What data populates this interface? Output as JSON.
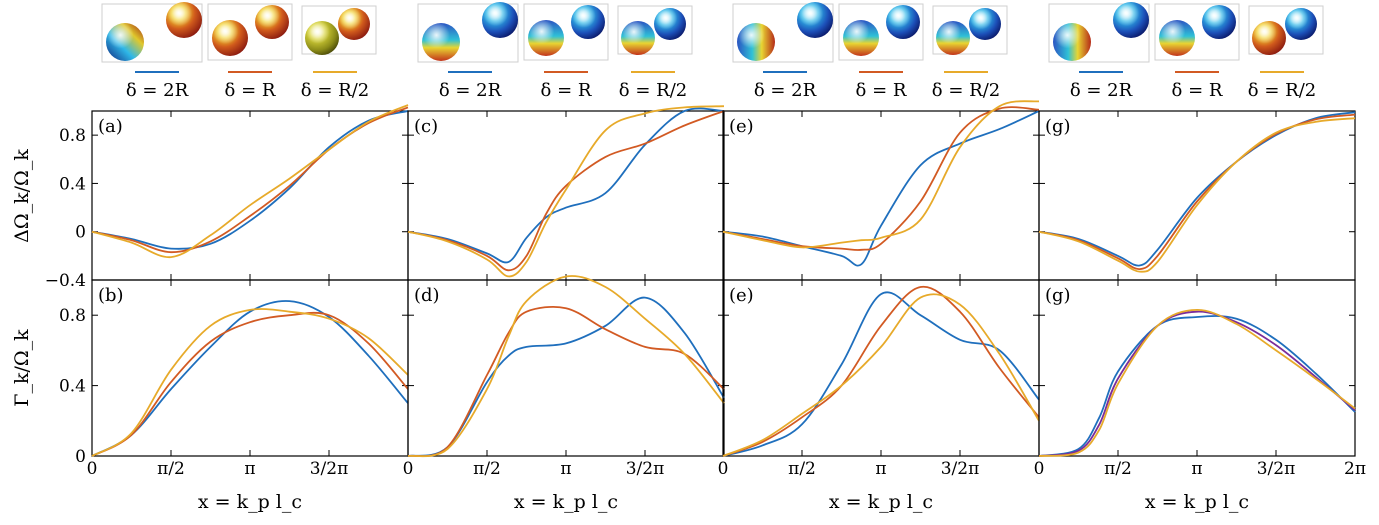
{
  "colors": {
    "two_r": "#1f6fbd",
    "r": "#d25a23",
    "half_r": "#e7aa2a",
    "extra": "#7b2d9a"
  },
  "legend": [
    "δ = 2R",
    "δ = R",
    "δ = R/2"
  ],
  "x_axis": {
    "label": "x = k_p l_c",
    "range": [
      0,
      6.2832
    ],
    "ticks": [
      {
        "value": 0,
        "label": "0"
      },
      {
        "value": 1.5708,
        "label": "π/2"
      },
      {
        "value": 3.1416,
        "label": "π"
      },
      {
        "value": 4.7124,
        "label": "3/2π"
      },
      {
        "value": 6.2832,
        "label": "2π"
      }
    ]
  },
  "y_top": {
    "label": "ΔΩ_k/Ω_k",
    "range": [
      -0.4,
      1.0
    ],
    "ticks": [
      {
        "value": -0.4,
        "label": "−0.4"
      },
      {
        "value": 0,
        "label": "0"
      },
      {
        "value": 0.4,
        "label": "0.4"
      },
      {
        "value": 0.8,
        "label": "0.8"
      }
    ]
  },
  "y_bot": {
    "label": "Γ_k/Ω_k",
    "range": [
      0,
      1.0
    ],
    "ticks": [
      {
        "value": 0,
        "label": "0"
      },
      {
        "value": 0.4,
        "label": "0.4"
      },
      {
        "value": 0.8,
        "label": "0.8"
      }
    ]
  },
  "chart_data": [
    {
      "type": "line",
      "panel": "(a)",
      "row": "top",
      "x": [
        0,
        0.7854,
        1.5708,
        2.3562,
        3.1416,
        3.927,
        4.7124,
        5.4978,
        6.2832
      ],
      "series": [
        {
          "name": "δ = 2R",
          "values": [
            0,
            -0.06,
            -0.14,
            -0.1,
            0.09,
            0.36,
            0.7,
            0.92,
            1.0
          ]
        },
        {
          "name": "δ = R",
          "values": [
            0,
            -0.07,
            -0.17,
            -0.08,
            0.13,
            0.38,
            0.68,
            0.9,
            1.03
          ]
        },
        {
          "name": "δ = R/2",
          "values": [
            0,
            -0.09,
            -0.21,
            -0.03,
            0.22,
            0.44,
            0.68,
            0.91,
            1.05
          ]
        }
      ]
    },
    {
      "type": "line",
      "panel": "(c)",
      "row": "top",
      "x": [
        0,
        0.7854,
        1.5708,
        2.0,
        2.3562,
        2.75,
        3.1416,
        3.927,
        4.7124,
        5.4978,
        6.2832
      ],
      "series": [
        {
          "name": "δ = 2R",
          "values": [
            0,
            -0.06,
            -0.18,
            -0.25,
            -0.05,
            0.12,
            0.2,
            0.32,
            0.72,
            1.0,
            1.0
          ]
        },
        {
          "name": "δ = R",
          "values": [
            0,
            -0.07,
            -0.2,
            -0.32,
            -0.2,
            0.15,
            0.38,
            0.62,
            0.73,
            0.88,
            1.0
          ]
        },
        {
          "name": "δ = R/2",
          "values": [
            0,
            -0.08,
            -0.23,
            -0.37,
            -0.25,
            0.08,
            0.35,
            0.84,
            0.98,
            1.03,
            1.04
          ]
        }
      ]
    },
    {
      "type": "line",
      "panel": "(e)",
      "row": "top",
      "x": [
        0,
        0.7854,
        1.5708,
        2.3562,
        2.75,
        3.1416,
        3.927,
        4.7124,
        5.4978,
        6.2832
      ],
      "series": [
        {
          "name": "δ = 2R",
          "values": [
            0,
            -0.04,
            -0.12,
            -0.2,
            -0.27,
            0.05,
            0.55,
            0.73,
            0.85,
            1.0
          ]
        },
        {
          "name": "δ = R",
          "values": [
            0,
            -0.06,
            -0.12,
            -0.14,
            -0.15,
            -0.1,
            0.25,
            0.82,
            1.02,
            1.01
          ]
        },
        {
          "name": "δ = R/2",
          "values": [
            0,
            -0.07,
            -0.13,
            -0.09,
            -0.07,
            -0.05,
            0.1,
            0.7,
            1.04,
            1.08
          ]
        }
      ]
    },
    {
      "type": "line",
      "panel": "(g)",
      "row": "top",
      "x": [
        0,
        0.7854,
        1.5708,
        2.0,
        2.3562,
        3.1416,
        3.927,
        4.7124,
        5.4978,
        6.2832
      ],
      "series": [
        {
          "name": "δ = 2R",
          "values": [
            0,
            -0.06,
            -0.2,
            -0.28,
            -0.15,
            0.28,
            0.58,
            0.8,
            0.94,
            0.99
          ]
        },
        {
          "name": "δ = R",
          "values": [
            0,
            -0.07,
            -0.22,
            -0.31,
            -0.2,
            0.25,
            0.58,
            0.81,
            0.93,
            0.97
          ]
        },
        {
          "name": "δ = R/2",
          "values": [
            0,
            -0.08,
            -0.24,
            -0.33,
            -0.25,
            0.22,
            0.58,
            0.82,
            0.91,
            0.94
          ]
        }
      ]
    },
    {
      "type": "line",
      "panel": "(b)",
      "row": "bottom",
      "x": [
        0,
        0.7854,
        1.5708,
        2.3562,
        3.1416,
        3.927,
        4.7124,
        5.4978,
        6.2832
      ],
      "series": [
        {
          "name": "δ = 2R",
          "values": [
            0,
            0.12,
            0.38,
            0.62,
            0.82,
            0.88,
            0.79,
            0.57,
            0.3
          ]
        },
        {
          "name": "δ = R",
          "values": [
            0,
            0.12,
            0.42,
            0.65,
            0.76,
            0.8,
            0.8,
            0.64,
            0.38
          ]
        },
        {
          "name": "δ = R/2",
          "values": [
            0,
            0.13,
            0.49,
            0.74,
            0.83,
            0.82,
            0.78,
            0.67,
            0.46
          ]
        }
      ]
    },
    {
      "type": "line",
      "panel": "(d)",
      "row": "bottom",
      "x": [
        0,
        0.7854,
        1.5708,
        2.0,
        2.3562,
        3.1416,
        3.927,
        4.7124,
        5.4978,
        6.2832
      ],
      "series": [
        {
          "name": "δ = 2R",
          "values": [
            0,
            0.05,
            0.42,
            0.57,
            0.62,
            0.64,
            0.74,
            0.9,
            0.7,
            0.33
          ]
        },
        {
          "name": "δ = R",
          "values": [
            0,
            0.05,
            0.46,
            0.7,
            0.82,
            0.84,
            0.72,
            0.62,
            0.58,
            0.38
          ]
        },
        {
          "name": "δ = R/2",
          "values": [
            0,
            0.04,
            0.38,
            0.68,
            0.88,
            1.02,
            0.96,
            0.78,
            0.58,
            0.3
          ]
        }
      ]
    },
    {
      "type": "line",
      "panel": "(e)",
      "row": "bottom",
      "x": [
        0,
        0.7854,
        1.5708,
        2.3562,
        3.1416,
        3.927,
        4.7124,
        5.4978,
        6.2832
      ],
      "series": [
        {
          "name": "δ = 2R",
          "values": [
            0,
            0.06,
            0.18,
            0.52,
            0.92,
            0.8,
            0.66,
            0.6,
            0.32
          ]
        },
        {
          "name": "δ = R",
          "values": [
            0,
            0.08,
            0.22,
            0.4,
            0.74,
            0.96,
            0.82,
            0.5,
            0.22
          ]
        },
        {
          "name": "δ = R/2",
          "values": [
            0,
            0.09,
            0.24,
            0.4,
            0.62,
            0.9,
            0.86,
            0.58,
            0.2
          ]
        }
      ]
    },
    {
      "type": "line",
      "panel": "(g)",
      "row": "bottom",
      "x": [
        0,
        0.7854,
        1.2,
        1.5708,
        2.3562,
        3.1416,
        3.927,
        4.7124,
        5.4978,
        6.2832
      ],
      "series": [
        {
          "name": "δ = 2R",
          "values": [
            0,
            0.04,
            0.22,
            0.48,
            0.74,
            0.79,
            0.78,
            0.66,
            0.47,
            0.25
          ]
        },
        {
          "name": "δ = R",
          "values": [
            0,
            0.03,
            0.18,
            0.44,
            0.74,
            0.82,
            0.76,
            0.63,
            0.45,
            0.26
          ]
        },
        {
          "name": "δ = R/2",
          "values": [
            0,
            0.02,
            0.15,
            0.41,
            0.74,
            0.83,
            0.75,
            0.6,
            0.44,
            0.27
          ]
        }
      ]
    }
  ]
}
